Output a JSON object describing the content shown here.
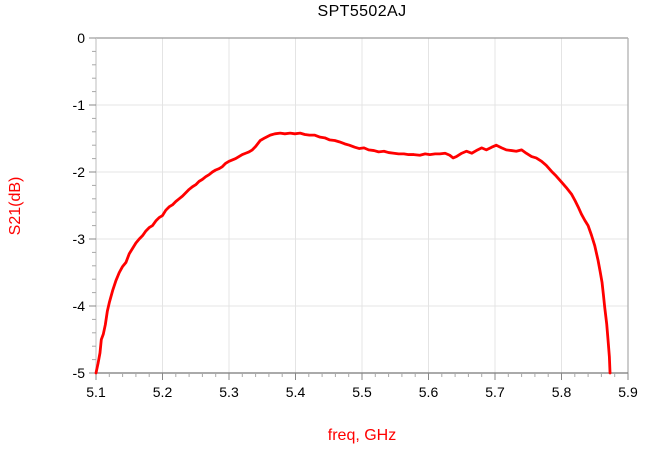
{
  "chart_data": {
    "type": "line",
    "title": "SPT5502AJ",
    "xlabel": "freq, GHz",
    "ylabel": "S21(dB)",
    "xlim": [
      5.1,
      5.9
    ],
    "ylim": [
      -5,
      0
    ],
    "x_ticks": [
      "5.1",
      "5.2",
      "5.3",
      "5.4",
      "5.5",
      "5.6",
      "5.7",
      "5.8",
      "5.9"
    ],
    "y_ticks": [
      "0",
      "-1",
      "-2",
      "-3",
      "-4",
      "-5"
    ],
    "x_minor_step": 0.02,
    "y_minor_step": 0.2,
    "grid": true,
    "legend": "none",
    "series": [
      {
        "name": "S21",
        "color": "#ff0000",
        "points": [
          [
            5.1,
            -5.0
          ],
          [
            5.103,
            -4.86
          ],
          [
            5.106,
            -4.7
          ],
          [
            5.108,
            -4.5
          ],
          [
            5.111,
            -4.42
          ],
          [
            5.114,
            -4.28
          ],
          [
            5.117,
            -4.08
          ],
          [
            5.12,
            -3.95
          ],
          [
            5.125,
            -3.77
          ],
          [
            5.13,
            -3.62
          ],
          [
            5.135,
            -3.5
          ],
          [
            5.14,
            -3.41
          ],
          [
            5.145,
            -3.35
          ],
          [
            5.15,
            -3.22
          ],
          [
            5.155,
            -3.14
          ],
          [
            5.16,
            -3.06
          ],
          [
            5.165,
            -3.0
          ],
          [
            5.17,
            -2.95
          ],
          [
            5.175,
            -2.88
          ],
          [
            5.18,
            -2.83
          ],
          [
            5.185,
            -2.8
          ],
          [
            5.19,
            -2.73
          ],
          [
            5.195,
            -2.68
          ],
          [
            5.2,
            -2.65
          ],
          [
            5.205,
            -2.57
          ],
          [
            5.21,
            -2.52
          ],
          [
            5.215,
            -2.49
          ],
          [
            5.22,
            -2.44
          ],
          [
            5.225,
            -2.4
          ],
          [
            5.23,
            -2.36
          ],
          [
            5.235,
            -2.31
          ],
          [
            5.24,
            -2.26
          ],
          [
            5.245,
            -2.22
          ],
          [
            5.25,
            -2.19
          ],
          [
            5.255,
            -2.14
          ],
          [
            5.26,
            -2.11
          ],
          [
            5.265,
            -2.07
          ],
          [
            5.27,
            -2.04
          ],
          [
            5.275,
            -2.0
          ],
          [
            5.28,
            -1.97
          ],
          [
            5.285,
            -1.95
          ],
          [
            5.29,
            -1.92
          ],
          [
            5.295,
            -1.87
          ],
          [
            5.3,
            -1.84
          ],
          [
            5.305,
            -1.82
          ],
          [
            5.31,
            -1.8
          ],
          [
            5.315,
            -1.77
          ],
          [
            5.32,
            -1.74
          ],
          [
            5.325,
            -1.72
          ],
          [
            5.33,
            -1.7
          ],
          [
            5.335,
            -1.67
          ],
          [
            5.34,
            -1.62
          ],
          [
            5.347,
            -1.53
          ],
          [
            5.354,
            -1.49
          ],
          [
            5.362,
            -1.45
          ],
          [
            5.369,
            -1.43
          ],
          [
            5.377,
            -1.42
          ],
          [
            5.384,
            -1.43
          ],
          [
            5.392,
            -1.42
          ],
          [
            5.399,
            -1.43
          ],
          [
            5.407,
            -1.42
          ],
          [
            5.414,
            -1.44
          ],
          [
            5.421,
            -1.45
          ],
          [
            5.429,
            -1.45
          ],
          [
            5.437,
            -1.48
          ],
          [
            5.444,
            -1.49
          ],
          [
            5.451,
            -1.52
          ],
          [
            5.459,
            -1.53
          ],
          [
            5.466,
            -1.55
          ],
          [
            5.474,
            -1.58
          ],
          [
            5.481,
            -1.6
          ],
          [
            5.489,
            -1.63
          ],
          [
            5.496,
            -1.65
          ],
          [
            5.503,
            -1.64
          ],
          [
            5.51,
            -1.67
          ],
          [
            5.518,
            -1.68
          ],
          [
            5.525,
            -1.7
          ],
          [
            5.533,
            -1.69
          ],
          [
            5.54,
            -1.71
          ],
          [
            5.548,
            -1.72
          ],
          [
            5.555,
            -1.73
          ],
          [
            5.563,
            -1.73
          ],
          [
            5.57,
            -1.74
          ],
          [
            5.578,
            -1.74
          ],
          [
            5.587,
            -1.75
          ],
          [
            5.595,
            -1.73
          ],
          [
            5.602,
            -1.74
          ],
          [
            5.61,
            -1.73
          ],
          [
            5.617,
            -1.73
          ],
          [
            5.625,
            -1.72
          ],
          [
            5.632,
            -1.75
          ],
          [
            5.637,
            -1.79
          ],
          [
            5.642,
            -1.77
          ],
          [
            5.65,
            -1.72
          ],
          [
            5.657,
            -1.69
          ],
          [
            5.665,
            -1.72
          ],
          [
            5.672,
            -1.68
          ],
          [
            5.68,
            -1.64
          ],
          [
            5.687,
            -1.67
          ],
          [
            5.695,
            -1.63
          ],
          [
            5.702,
            -1.6
          ],
          [
            5.71,
            -1.64
          ],
          [
            5.717,
            -1.67
          ],
          [
            5.725,
            -1.68
          ],
          [
            5.732,
            -1.69
          ],
          [
            5.74,
            -1.67
          ],
          [
            5.747,
            -1.72
          ],
          [
            5.755,
            -1.77
          ],
          [
            5.762,
            -1.79
          ],
          [
            5.77,
            -1.84
          ],
          [
            5.777,
            -1.9
          ],
          [
            5.785,
            -1.99
          ],
          [
            5.792,
            -2.06
          ],
          [
            5.8,
            -2.15
          ],
          [
            5.807,
            -2.23
          ],
          [
            5.815,
            -2.33
          ],
          [
            5.82,
            -2.42
          ],
          [
            5.825,
            -2.52
          ],
          [
            5.83,
            -2.63
          ],
          [
            5.835,
            -2.72
          ],
          [
            5.84,
            -2.8
          ],
          [
            5.845,
            -2.94
          ],
          [
            5.85,
            -3.1
          ],
          [
            5.855,
            -3.32
          ],
          [
            5.858,
            -3.48
          ],
          [
            5.861,
            -3.65
          ],
          [
            5.863,
            -3.83
          ],
          [
            5.865,
            -4.02
          ],
          [
            5.868,
            -4.27
          ],
          [
            5.87,
            -4.51
          ],
          [
            5.872,
            -4.76
          ],
          [
            5.873,
            -5.0
          ]
        ]
      }
    ]
  },
  "colors": {
    "trace": "#ff0000",
    "axis_label": "#ff0000",
    "tick_label": "#000000",
    "title": "#000000",
    "grid": "#e4e4e4",
    "frame_top": "#999999",
    "frame_right": "#b0b0b0",
    "frame_bottom": "#777777",
    "frame_left": "#cccccc",
    "tick_major": "#888888",
    "tick_minor": "#a8a8a8",
    "background": "#ffffff"
  }
}
